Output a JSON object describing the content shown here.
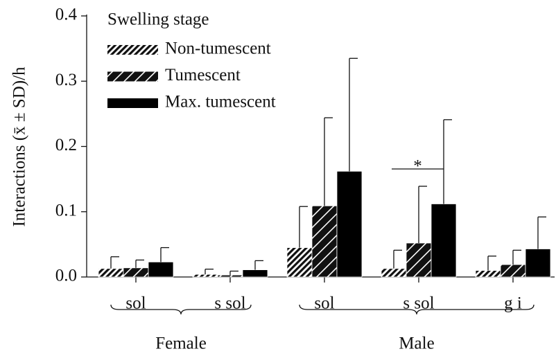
{
  "chart_data": {
    "type": "bar",
    "y_label": "Interactions (x̄ ± SD)/h",
    "legend_title": "Swelling stage",
    "categories": [
      "sol",
      "s sol",
      "sol",
      "s sol",
      "g i"
    ],
    "groups": [
      "Female",
      "Male"
    ],
    "series": [
      {
        "name": "Non-tumescent",
        "color": "#000000",
        "hatch": "dense",
        "values": [
          0.013,
          0.004,
          0.045,
          0.013,
          0.01
        ],
        "errors": [
          0.018,
          0.008,
          0.063,
          0.028,
          0.022
        ]
      },
      {
        "name": "Tumescent",
        "color": "#000000",
        "hatch": "sparse",
        "values": [
          0.014,
          0.003,
          0.109,
          0.052,
          0.019
        ],
        "errors": [
          0.012,
          0.006,
          0.135,
          0.087,
          0.022
        ]
      },
      {
        "name": "Max. tumescent",
        "color": "#000000",
        "hatch": "none",
        "values": [
          0.023,
          0.011,
          0.162,
          0.112,
          0.043
        ],
        "errors": [
          0.022,
          0.014,
          0.173,
          0.129,
          0.049
        ]
      }
    ],
    "annotation": "*",
    "ylim": [
      0,
      0.4
    ],
    "yticks": [
      {
        "value": 0,
        "label": "0.0"
      },
      {
        "value": 0.1,
        "label": "0.1"
      },
      {
        "value": 0.2,
        "label": "0.2"
      },
      {
        "value": 0.3,
        "label": "0.3"
      },
      {
        "value": 0.4,
        "label": "0.4"
      }
    ]
  }
}
